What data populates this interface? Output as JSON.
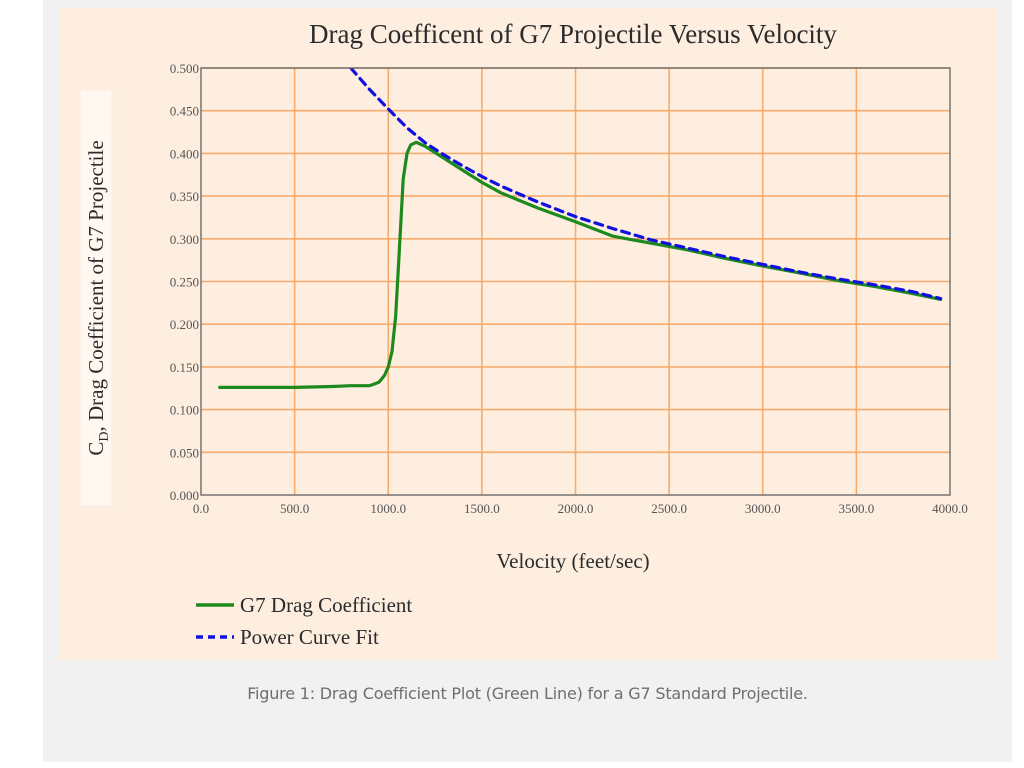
{
  "caption": "Figure 1: Drag Coefficient Plot (Green Line) for a G7 Standard Projectile.",
  "colors": {
    "page_background": "#f1f1f1",
    "figure_background": "#fdeee0",
    "grid": "#f6a05a",
    "axis": "#6b6b6b",
    "g7_line": "#1e8a1e",
    "fit_line": "#1010e0"
  },
  "chart_data": {
    "type": "line",
    "title": "Drag Coefficent of G7 Projectile Versus Velocity",
    "xlabel": "Velocity (feet/sec)",
    "ylabel_main": "C",
    "ylabel_sub": "D",
    "ylabel_rest": ", Drag Coefficient of G7 Projectile",
    "xlim": [
      0,
      4000
    ],
    "ylim": [
      0,
      0.5
    ],
    "grid": true,
    "legend_position": "bottom-left",
    "x_ticks": [
      0,
      500,
      1000,
      1500,
      2000,
      2500,
      3000,
      3500,
      4000
    ],
    "x_tick_labels": [
      "0.0",
      "500.0",
      "1000.0",
      "1500.0",
      "2000.0",
      "2500.0",
      "3000.0",
      "3500.0",
      "4000.0"
    ],
    "y_ticks": [
      0,
      0.05,
      0.1,
      0.15,
      0.2,
      0.25,
      0.3,
      0.35,
      0.4,
      0.45,
      0.5
    ],
    "y_tick_labels": [
      "0.000",
      "0.050",
      "0.100",
      "0.150",
      "0.200",
      "0.250",
      "0.300",
      "0.350",
      "0.400",
      "0.450",
      "0.500"
    ],
    "series": [
      {
        "name": "G7 Drag Coefficient",
        "style": "solid",
        "x": [
          100,
          300,
          500,
          700,
          800,
          900,
          950,
          980,
          1000,
          1020,
          1040,
          1060,
          1080,
          1100,
          1120,
          1150,
          1200,
          1300,
          1400,
          1500,
          1600,
          1800,
          2000,
          2200,
          2400,
          2600,
          2800,
          3000,
          3200,
          3400,
          3600,
          3800,
          3950
        ],
        "y": [
          0.126,
          0.126,
          0.126,
          0.127,
          0.128,
          0.128,
          0.132,
          0.14,
          0.15,
          0.168,
          0.21,
          0.29,
          0.37,
          0.4,
          0.41,
          0.413,
          0.408,
          0.394,
          0.38,
          0.366,
          0.354,
          0.336,
          0.32,
          0.303,
          0.295,
          0.287,
          0.277,
          0.268,
          0.26,
          0.251,
          0.244,
          0.236,
          0.229
        ]
      },
      {
        "name": "Power Curve Fit",
        "style": "dashed",
        "x": [
          800,
          900,
          1000,
          1100,
          1200,
          1300,
          1400,
          1500,
          1600,
          1800,
          2000,
          2200,
          2400,
          2600,
          2800,
          3000,
          3200,
          3400,
          3600,
          3800,
          3950
        ],
        "y": [
          0.5,
          0.475,
          0.452,
          0.43,
          0.412,
          0.398,
          0.385,
          0.373,
          0.362,
          0.343,
          0.326,
          0.312,
          0.299,
          0.289,
          0.279,
          0.27,
          0.261,
          0.253,
          0.246,
          0.238,
          0.23
        ]
      }
    ]
  }
}
